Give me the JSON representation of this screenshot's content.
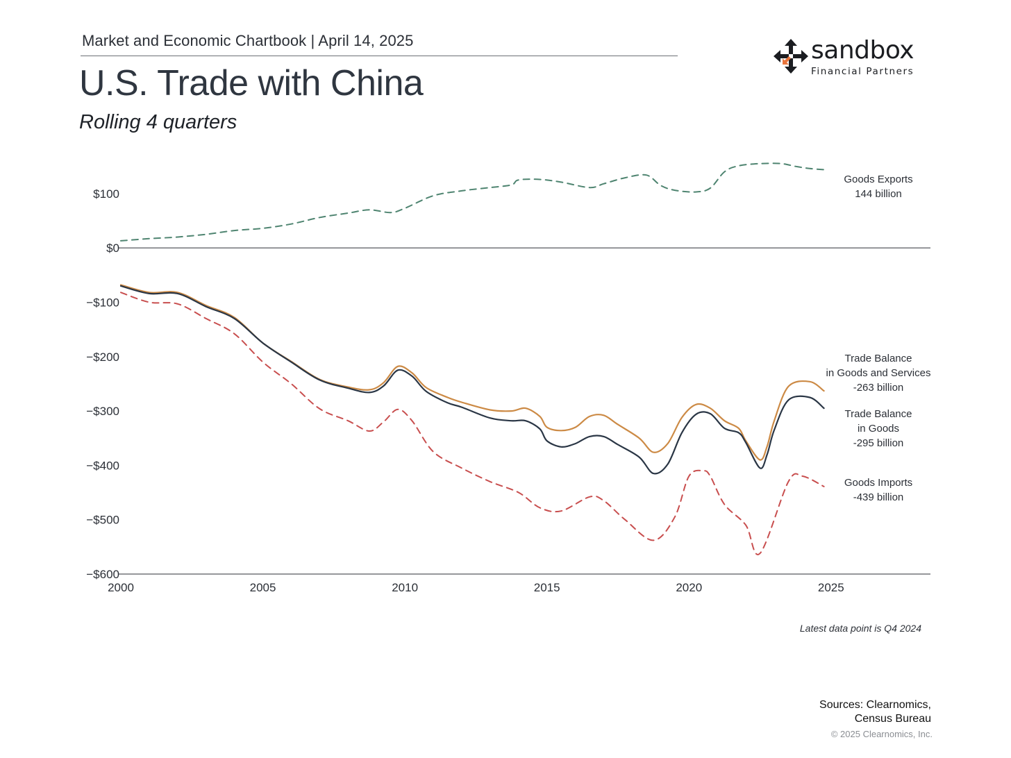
{
  "header": {
    "line": "Market and Economic Chartbook | April 14, 2025"
  },
  "title": "U.S. Trade with China",
  "subtitle": "Rolling 4 quarters",
  "logo": {
    "word": "sandbox",
    "sub": "Financial Partners",
    "icon": "arrows-cross-icon",
    "accent": "#e8743b"
  },
  "note": "Latest data point is Q4 2024",
  "sources": {
    "line1": "Sources: Clearnomics,",
    "line2": "Census Bureau"
  },
  "copyright": "© 2025 Clearnomics, Inc.",
  "chart_data": {
    "type": "line",
    "xlim": [
      2000,
      2028.5
    ],
    "ylim": [
      -600,
      170
    ],
    "x_ticks": [
      2000,
      2005,
      2010,
      2015,
      2020,
      2025
    ],
    "x_tick_labels": [
      "2000",
      "2005",
      "2010",
      "2015",
      "2020",
      "2025"
    ],
    "y_ticks": [
      100,
      0,
      -100,
      -200,
      -300,
      -400,
      -500,
      -600
    ],
    "y_tick_labels": [
      "$100",
      "$0",
      "−$100",
      "−$200",
      "−$300",
      "−$400",
      "−$500",
      "−$600"
    ],
    "series": [
      {
        "key": "exports",
        "color": "#4e8470",
        "dashed": true,
        "label_lines": [
          "Goods Exports",
          "144 billion"
        ],
        "points": [
          [
            2000,
            13
          ],
          [
            2001,
            17
          ],
          [
            2002,
            20
          ],
          [
            2003,
            25
          ],
          [
            2004,
            32
          ],
          [
            2005,
            36
          ],
          [
            2006,
            44
          ],
          [
            2007,
            56
          ],
          [
            2008,
            64
          ],
          [
            2008.75,
            70
          ],
          [
            2009.5,
            65
          ],
          [
            2010,
            73
          ],
          [
            2011,
            96
          ],
          [
            2012,
            105
          ],
          [
            2013,
            111
          ],
          [
            2013.75,
            116
          ],
          [
            2014,
            125
          ],
          [
            2014.75,
            126
          ],
          [
            2015.5,
            121
          ],
          [
            2016.5,
            111
          ],
          [
            2017,
            118
          ],
          [
            2017.75,
            129
          ],
          [
            2018.5,
            134
          ],
          [
            2019,
            115
          ],
          [
            2019.5,
            106
          ],
          [
            2020.25,
            103
          ],
          [
            2020.75,
            110
          ],
          [
            2021.25,
            140
          ],
          [
            2021.75,
            151
          ],
          [
            2022.5,
            155
          ],
          [
            2023.25,
            155
          ],
          [
            2023.75,
            150
          ],
          [
            2024.25,
            146
          ],
          [
            2024.75,
            144
          ]
        ]
      },
      {
        "key": "imports",
        "color": "#c84e4e",
        "dashed": true,
        "label_lines": [
          "Goods Imports",
          "-439 billion"
        ],
        "points": [
          [
            2000,
            -82
          ],
          [
            2001,
            -100
          ],
          [
            2002,
            -103
          ],
          [
            2003,
            -130
          ],
          [
            2004,
            -158
          ],
          [
            2005,
            -210
          ],
          [
            2006,
            -250
          ],
          [
            2007,
            -296
          ],
          [
            2008,
            -318
          ],
          [
            2008.75,
            -337
          ],
          [
            2009.25,
            -320
          ],
          [
            2009.75,
            -297
          ],
          [
            2010.25,
            -318
          ],
          [
            2011,
            -375
          ],
          [
            2012,
            -405
          ],
          [
            2013,
            -430
          ],
          [
            2014,
            -450
          ],
          [
            2014.75,
            -478
          ],
          [
            2015.5,
            -484
          ],
          [
            2016.5,
            -458
          ],
          [
            2017,
            -465
          ],
          [
            2017.75,
            -500
          ],
          [
            2018.75,
            -538
          ],
          [
            2019.5,
            -495
          ],
          [
            2020,
            -420
          ],
          [
            2020.5,
            -410
          ],
          [
            2020.75,
            -420
          ],
          [
            2021.25,
            -472
          ],
          [
            2022,
            -510
          ],
          [
            2022.5,
            -562
          ],
          [
            2023.5,
            -430
          ],
          [
            2024,
            -420
          ],
          [
            2024.75,
            -439
          ]
        ]
      },
      {
        "key": "goods_services",
        "color": "#cc8a45",
        "dashed": false,
        "label_lines": [
          "Trade Balance",
          "in Goods and Services",
          "-263 billion"
        ],
        "points": [
          [
            2000,
            -68
          ],
          [
            2001,
            -82
          ],
          [
            2002,
            -82
          ],
          [
            2003,
            -106
          ],
          [
            2004,
            -128
          ],
          [
            2005,
            -175
          ],
          [
            2006,
            -209
          ],
          [
            2007,
            -242
          ],
          [
            2008,
            -256
          ],
          [
            2008.75,
            -261
          ],
          [
            2009.25,
            -248
          ],
          [
            2009.75,
            -218
          ],
          [
            2010.25,
            -230
          ],
          [
            2010.75,
            -257
          ],
          [
            2011.5,
            -275
          ],
          [
            2012,
            -284
          ],
          [
            2013,
            -298
          ],
          [
            2013.75,
            -300
          ],
          [
            2014.25,
            -295
          ],
          [
            2014.75,
            -310
          ],
          [
            2015,
            -330
          ],
          [
            2015.5,
            -336
          ],
          [
            2016,
            -330
          ],
          [
            2016.5,
            -310
          ],
          [
            2017,
            -308
          ],
          [
            2017.5,
            -325
          ],
          [
            2018.25,
            -350
          ],
          [
            2018.75,
            -376
          ],
          [
            2019.25,
            -360
          ],
          [
            2019.75,
            -312
          ],
          [
            2020.25,
            -288
          ],
          [
            2020.75,
            -295
          ],
          [
            2021.25,
            -318
          ],
          [
            2021.75,
            -332
          ],
          [
            2022,
            -355
          ],
          [
            2022.5,
            -390
          ],
          [
            2022.75,
            -365
          ],
          [
            2023,
            -318
          ],
          [
            2023.5,
            -255
          ],
          [
            2024.25,
            -246
          ],
          [
            2024.75,
            -263
          ]
        ]
      },
      {
        "key": "goods",
        "color": "#2a3645",
        "dashed": false,
        "label_lines": [
          "Trade Balance",
          "in Goods",
          "-295 billion"
        ],
        "points": [
          [
            2000,
            -70
          ],
          [
            2001,
            -84
          ],
          [
            2002,
            -84
          ],
          [
            2003,
            -108
          ],
          [
            2004,
            -130
          ],
          [
            2005,
            -175
          ],
          [
            2006,
            -210
          ],
          [
            2007,
            -243
          ],
          [
            2008,
            -258
          ],
          [
            2008.75,
            -266
          ],
          [
            2009.25,
            -254
          ],
          [
            2009.75,
            -225
          ],
          [
            2010.25,
            -236
          ],
          [
            2010.75,
            -264
          ],
          [
            2011.5,
            -285
          ],
          [
            2012,
            -293
          ],
          [
            2013,
            -313
          ],
          [
            2013.75,
            -318
          ],
          [
            2014.25,
            -318
          ],
          [
            2014.75,
            -333
          ],
          [
            2015,
            -355
          ],
          [
            2015.5,
            -366
          ],
          [
            2016,
            -360
          ],
          [
            2016.5,
            -347
          ],
          [
            2017,
            -347
          ],
          [
            2017.5,
            -362
          ],
          [
            2018.25,
            -385
          ],
          [
            2018.75,
            -415
          ],
          [
            2019.25,
            -398
          ],
          [
            2019.75,
            -340
          ],
          [
            2020.25,
            -306
          ],
          [
            2020.75,
            -305
          ],
          [
            2021.25,
            -332
          ],
          [
            2021.75,
            -340
          ],
          [
            2022,
            -358
          ],
          [
            2022.5,
            -405
          ],
          [
            2022.75,
            -380
          ],
          [
            2023,
            -335
          ],
          [
            2023.5,
            -280
          ],
          [
            2024.25,
            -275
          ],
          [
            2024.75,
            -295
          ]
        ]
      }
    ]
  }
}
